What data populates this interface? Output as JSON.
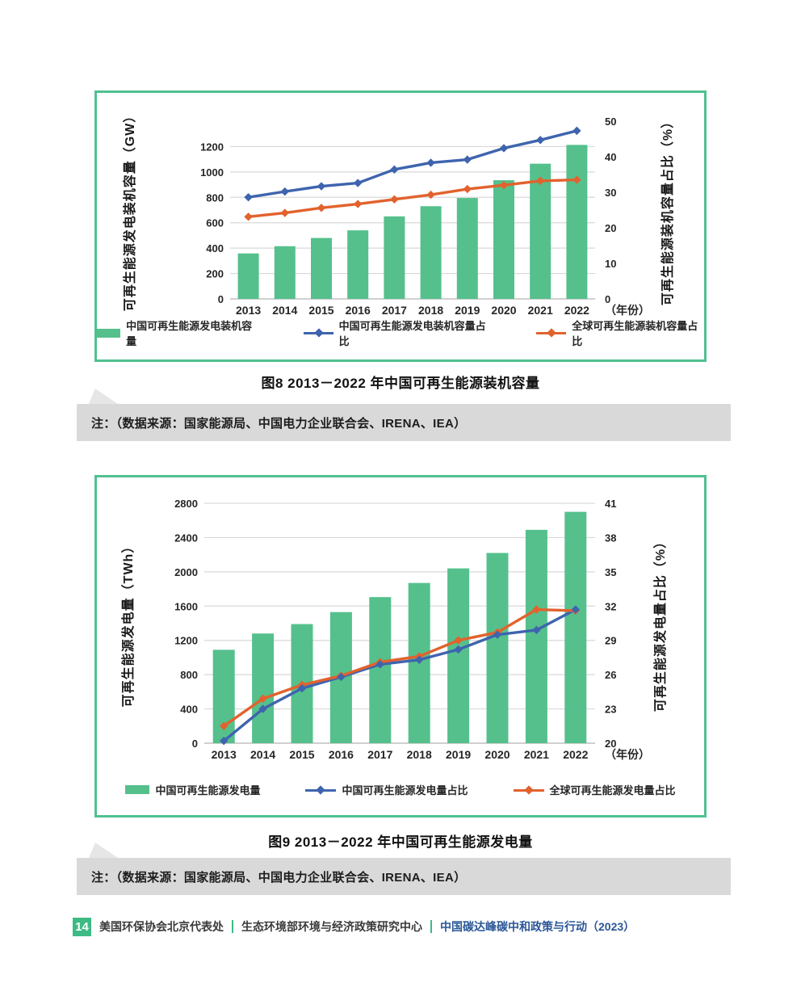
{
  "captions": {
    "fig8": "图8  2013－2022 年中国可再生能源装机容量",
    "fig9": "图9  2013－2022 年中国可再生能源发电量"
  },
  "notes": {
    "fig8": "注：（数据来源：国家能源局、中国电力企业联合会、IRENA、IEA）",
    "fig9": "注：（数据来源：国家能源局、中国电力企业联合会、IRENA、IEA）"
  },
  "footer": {
    "page_number": "14",
    "org1": "美国环保协会北京代表处",
    "org2": "生态环境部环境与经济政策研究中心",
    "report_title": "中国碳达峰碳中和政策与行动（2023）",
    "accent_green": "#3eba85",
    "report_title_color": "#2b5797"
  },
  "colors": {
    "bar_green": "#55c08c",
    "line_blue": "#3e64ae",
    "line_orange": "#e2622d",
    "gridline": "#d9d9d9",
    "baseline": "#c0c0c0",
    "chart_border": "#4fc08f"
  },
  "chart_data": [
    {
      "type": "bar",
      "subtype": "bar-with-lines-dual-axis",
      "title": "图8 2013－2022年中国可再生能源装机容量",
      "categories": [
        "2013",
        "2014",
        "2015",
        "2016",
        "2017",
        "2018",
        "2019",
        "2020",
        "2021",
        "2022"
      ],
      "x_suffix": "（年份）",
      "bar_series": {
        "name": "中国可再生能源发电装机容量",
        "color": "#55c08c",
        "axis": "left",
        "values": [
          358,
          415,
          480,
          540,
          650,
          730,
          795,
          935,
          1065,
          1213
        ]
      },
      "line_series": [
        {
          "name": "中国可再生能源发电装机容量占比",
          "color": "#3e64ae",
          "axis": "right",
          "values": [
            28.6,
            30.2,
            31.7,
            32.6,
            36.4,
            38.3,
            39.2,
            42.4,
            44.7,
            47.3
          ]
        },
        {
          "name": "全球可再生能源装机容量占比",
          "color": "#e2622d",
          "axis": "right",
          "values": [
            23.1,
            24.2,
            25.6,
            26.7,
            28.0,
            29.3,
            30.9,
            32.0,
            33.2,
            33.5
          ]
        }
      ],
      "left_axis": {
        "label": "可再生能源发电装机容量（GW）",
        "ticks": [
          0,
          200,
          400,
          600,
          800,
          1000,
          1200
        ],
        "min": 0,
        "max": 1400
      },
      "right_axis": {
        "label": "可再生能源装机容量占比（%）",
        "ticks": [
          0,
          10,
          20,
          30,
          40,
          50
        ],
        "min": 0,
        "max": 50
      },
      "grid": true,
      "legend_position": "bottom"
    },
    {
      "type": "bar",
      "subtype": "bar-with-lines-dual-axis",
      "title": "图9 2013－2022年中国可再生能源发电量",
      "categories": [
        "2013",
        "2014",
        "2015",
        "2016",
        "2017",
        "2018",
        "2019",
        "2020",
        "2021",
        "2022"
      ],
      "x_suffix": "（年份）",
      "bar_series": {
        "name": "中国可再生能源发电量",
        "color": "#55c08c",
        "axis": "left",
        "values": [
          1090,
          1280,
          1390,
          1530,
          1705,
          1870,
          2040,
          2220,
          2490,
          2700
        ]
      },
      "line_series": [
        {
          "name": "中国可再生能源发电量占比",
          "color": "#3e64ae",
          "axis": "right",
          "values": [
            20.2,
            23.0,
            24.8,
            25.8,
            26.9,
            27.3,
            28.2,
            29.5,
            29.9,
            31.7
          ]
        },
        {
          "name": "全球可再生能源发电量占比",
          "color": "#e2622d",
          "axis": "right",
          "values": [
            21.5,
            23.9,
            25.1,
            25.9,
            27.1,
            27.6,
            29.0,
            29.7,
            31.7,
            31.6
          ]
        }
      ],
      "left_axis": {
        "label": "可再生能源发电量（TWh）",
        "ticks": [
          0,
          400,
          800,
          1200,
          1600,
          2000,
          2400,
          2800
        ],
        "min": 0,
        "max": 2800
      },
      "right_axis": {
        "label": "可再生能源发电量占比（%）",
        "ticks": [
          20,
          23,
          26,
          29,
          32,
          35,
          38,
          41
        ],
        "min": 20,
        "max": 41
      },
      "grid": true,
      "legend_position": "bottom"
    }
  ]
}
